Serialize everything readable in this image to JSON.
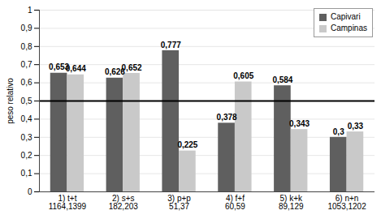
{
  "chart_data": {
    "type": "bar",
    "y_label": "peso relativo",
    "categories": [
      "1) t+t\n1164,1399",
      "2) s+s\n182,203",
      "3) p+p\n51,37",
      "4) f+f\n60,59",
      "5) k+k\n89,129",
      "6) n+n\n1053,1202"
    ],
    "series": [
      {
        "name": "Capivari",
        "color": "#5f5f5f",
        "values": [
          0.653,
          0.626,
          0.777,
          0.378,
          0.584,
          0.3
        ],
        "value_labels": [
          "0,653",
          "0,626",
          "0,777",
          "0,378",
          "0,584",
          "0,3"
        ]
      },
      {
        "name": "Campinas",
        "color": "#c9c9c9",
        "values": [
          0.644,
          0.652,
          0.225,
          0.605,
          0.343,
          0.33
        ],
        "value_labels": [
          "0,644",
          "0,652",
          "0,225",
          "0,605",
          "0,343",
          "0,33"
        ]
      }
    ],
    "ylim": [
      0,
      1
    ],
    "yticks": [
      0,
      {
        "value": 0.1,
        "label": "0,1"
      },
      {
        "value": 0.2,
        "label": "0,2"
      },
      {
        "value": 0.3,
        "label": "0,3"
      },
      {
        "value": 0.4,
        "label": "0,4"
      },
      {
        "value": 0.5,
        "label": "0,5"
      },
      {
        "value": 0.6,
        "label": "0,6"
      },
      {
        "value": 0.7,
        "label": "0,7"
      },
      {
        "value": 0.8,
        "label": "0,8"
      },
      {
        "value": 0.9,
        "label": "0,9"
      },
      1
    ],
    "reference_line": 0.5,
    "grid": true,
    "data_labels": true,
    "legend": "top-right"
  }
}
